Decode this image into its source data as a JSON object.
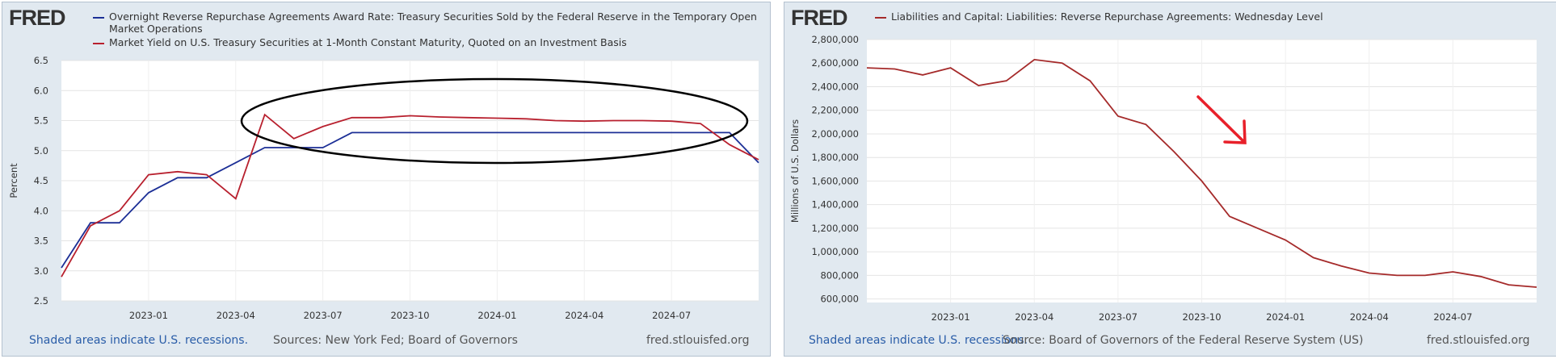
{
  "chart_data": [
    {
      "type": "line",
      "logo": "FRED",
      "x": [
        "2022-10",
        "2022-11",
        "2022-12",
        "2023-01",
        "2023-02",
        "2023-03",
        "2023-04",
        "2023-05",
        "2023-06",
        "2023-07",
        "2023-08",
        "2023-09",
        "2023-10",
        "2023-11",
        "2023-12",
        "2024-01",
        "2024-02",
        "2024-03",
        "2024-04",
        "2024-05",
        "2024-06",
        "2024-07",
        "2024-08",
        "2024-09",
        "2024-10"
      ],
      "series": [
        {
          "name": "Overnight Reverse Repurchase Agreements Award Rate: Treasury Securities Sold by the Federal Reserve in the Temporary Open Market Operations",
          "color": "#1c2f96",
          "values": [
            3.05,
            3.8,
            3.8,
            4.3,
            4.55,
            4.55,
            4.8,
            5.05,
            5.05,
            5.05,
            5.3,
            5.3,
            5.3,
            5.3,
            5.3,
            5.3,
            5.3,
            5.3,
            5.3,
            5.3,
            5.3,
            5.3,
            5.3,
            5.3,
            4.8
          ]
        },
        {
          "name": "Market Yield on U.S. Treasury Securities at 1-Month Constant Maturity, Quoted on an Investment Basis",
          "color": "#b8202e",
          "values": [
            2.9,
            3.75,
            4.0,
            4.6,
            4.65,
            4.6,
            4.2,
            5.6,
            5.2,
            5.4,
            5.55,
            5.55,
            5.58,
            5.56,
            5.55,
            5.54,
            5.53,
            5.5,
            5.49,
            5.5,
            5.5,
            5.49,
            5.45,
            5.1,
            4.85
          ]
        }
      ],
      "xlim": [
        "2022-10",
        "2024-10"
      ],
      "xticks": [
        "2023-01",
        "2023-04",
        "2023-07",
        "2023-10",
        "2024-01",
        "2024-04",
        "2024-07"
      ],
      "ylim": [
        2.5,
        6.5
      ],
      "yticks": [
        2.5,
        {
          "value": 3,
          "label": "3.0"
        },
        3.5,
        {
          "value": 4,
          "label": "4.0"
        },
        4.5,
        {
          "value": 5,
          "label": "5.0"
        },
        5.5,
        {
          "value": 6,
          "label": "6.0"
        },
        6.5
      ],
      "ylabel": "Percent",
      "grid": true,
      "note": "Shaded areas indicate U.S. recessions.",
      "source": "Sources: New York Fed; Board of Governors",
      "site": "fred.stlouisfed.org"
    },
    {
      "type": "line",
      "logo": "FRED",
      "x": [
        "2022-10",
        "2022-11",
        "2022-12",
        "2023-01",
        "2023-02",
        "2023-03",
        "2023-04",
        "2023-05",
        "2023-06",
        "2023-07",
        "2023-08",
        "2023-09",
        "2023-10",
        "2023-11",
        "2023-12",
        "2024-01",
        "2024-02",
        "2024-03",
        "2024-04",
        "2024-05",
        "2024-06",
        "2024-07",
        "2024-08",
        "2024-09",
        "2024-10"
      ],
      "series": [
        {
          "name": "Liabilities and Capital: Liabilities: Reverse Repurchase Agreements: Wednesday Level",
          "color": "#a52a2a",
          "values": [
            2560000,
            2550000,
            2500000,
            2560000,
            2410000,
            2450000,
            2630000,
            2600000,
            2450000,
            2150000,
            2080000,
            1850000,
            1600000,
            1300000,
            1200000,
            1100000,
            950000,
            880000,
            820000,
            800000,
            800000,
            830000,
            790000,
            720000,
            700000
          ]
        }
      ],
      "xlim": [
        "2022-10",
        "2024-10"
      ],
      "xticks": [
        "2023-01",
        "2023-04",
        "2023-07",
        "2023-10",
        "2024-01",
        "2024-04",
        "2024-07"
      ],
      "ylim": [
        570000,
        2800000
      ],
      "yticks": [
        {
          "value": 600000,
          "label": "600,000"
        },
        {
          "value": 800000,
          "label": "800,000"
        },
        {
          "value": 1000000,
          "label": "1,000,000"
        },
        {
          "value": 1200000,
          "label": "1,200,000"
        },
        {
          "value": 1400000,
          "label": "1,400,000"
        },
        {
          "value": 1600000,
          "label": "1,600,000"
        },
        {
          "value": 1800000,
          "label": "1,800,000"
        },
        {
          "value": 2000000,
          "label": "2,000,000"
        },
        {
          "value": 2200000,
          "label": "2,200,000"
        },
        {
          "value": 2400000,
          "label": "2,400,000"
        },
        {
          "value": 2600000,
          "label": "2,600,000"
        },
        {
          "value": 2800000,
          "label": "2,800,000"
        }
      ],
      "ylabel": "Millions of U.S. Dollars",
      "grid": true,
      "note": "Shaded areas indicate U.S. recessions.",
      "source": "Source: Board of Governors of the Federal Reserve System (US)",
      "site": "fred.stlouisfed.org"
    }
  ]
}
